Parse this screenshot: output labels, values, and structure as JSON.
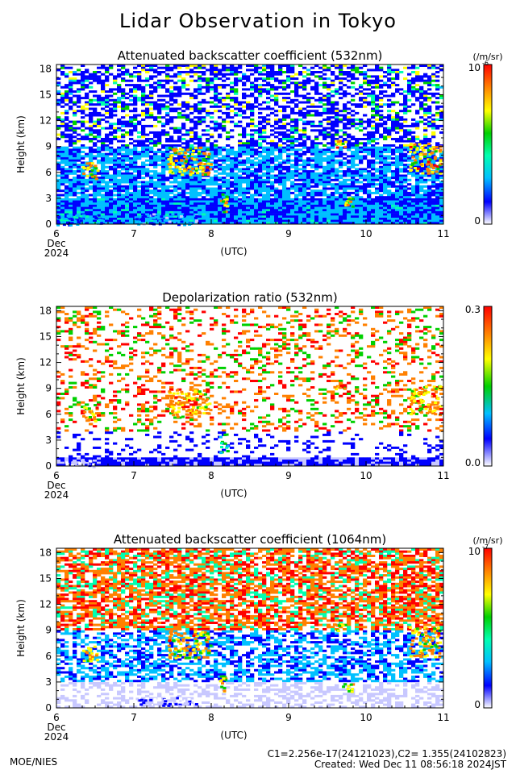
{
  "title": "Lidar Observation in Tokyo",
  "footer": {
    "org": "MOE/NIES",
    "calibration": "C1=2.256e-17(24121023),C2= 1.355(24102823)",
    "created": "Created: Wed Dec 11 08:56:18 2024JST"
  },
  "colors": {
    "colormap": [
      "#ffffff",
      "#c8c8ff",
      "#0000ff",
      "#00c0ff",
      "#00ffb0",
      "#00d000",
      "#ffff00",
      "#ff8000",
      "#ff0000"
    ]
  },
  "chart_data": [
    {
      "type": "heatmap",
      "title": "Attenuated backscatter coefficient (532nm)",
      "ylabel": "Height (km)",
      "xlabel": "(UTC)",
      "x_ticks": [
        "6",
        "7",
        "8",
        "9",
        "10",
        "11"
      ],
      "x_sub": [
        "Dec",
        "2024"
      ],
      "y_ticks": [
        "0",
        "3",
        "6",
        "9",
        "12",
        "15",
        "18"
      ],
      "xlim": [
        6,
        11
      ],
      "ylim": [
        0,
        18.5
      ],
      "colorbar": {
        "unit": "(/m/sr)",
        "max_label": "10",
        "min_label": "0",
        "max_exp": "-6"
      },
      "features": [
        {
          "t": [
            6.33,
            6.52
          ],
          "h": [
            5.3,
            7.3
          ],
          "level": 0.95
        },
        {
          "t": [
            7.43,
            7.98
          ],
          "h": [
            5.8,
            9.0
          ],
          "level": 0.95
        },
        {
          "t": [
            8.1,
            8.2
          ],
          "h": [
            1.5,
            3.8
          ],
          "level": 0.9
        },
        {
          "t": [
            9.57,
            9.72
          ],
          "h": [
            9.0,
            9.9
          ],
          "level": 0.95
        },
        {
          "t": [
            9.68,
            9.82
          ],
          "h": [
            2.0,
            3.4
          ],
          "level": 0.9
        },
        {
          "t": [
            10.55,
            10.95
          ],
          "h": [
            6.0,
            9.5
          ],
          "level": 0.95
        },
        {
          "t": [
            6.0,
            6.6
          ],
          "h": [
            0,
            1.2
          ],
          "level": 0.5
        },
        {
          "t": [
            7.0,
            7.8
          ],
          "h": [
            0,
            1.3
          ],
          "level": 0.45
        }
      ]
    },
    {
      "type": "heatmap",
      "title": "Depolarization ratio (532nm)",
      "ylabel": "Height (km)",
      "xlabel": "(UTC)",
      "x_ticks": [
        "6",
        "7",
        "8",
        "9",
        "10",
        "11"
      ],
      "x_sub": [
        "Dec",
        "2024"
      ],
      "y_ticks": [
        "0",
        "3",
        "6",
        "9",
        "12",
        "15",
        "18"
      ],
      "xlim": [
        6,
        11
      ],
      "ylim": [
        0,
        18.5
      ],
      "colorbar": {
        "max_label": "0.3",
        "min_label": "0.0"
      },
      "features": [
        {
          "t": [
            6.33,
            6.52
          ],
          "h": [
            5.3,
            7.3
          ],
          "level": 0.95
        },
        {
          "t": [
            7.43,
            7.98
          ],
          "h": [
            5.8,
            9.0
          ],
          "level": 0.95
        },
        {
          "t": [
            8.1,
            8.2
          ],
          "h": [
            1.5,
            3.8
          ],
          "level": 0.7
        },
        {
          "t": [
            9.57,
            9.72
          ],
          "h": [
            9.0,
            9.9
          ],
          "level": 0.95
        },
        {
          "t": [
            10.55,
            10.95
          ],
          "h": [
            6.0,
            9.5
          ],
          "level": 0.95
        },
        {
          "t": [
            6.1,
            6.5
          ],
          "h": [
            0,
            1.0
          ],
          "level": 0.2
        }
      ]
    },
    {
      "type": "heatmap",
      "title": "Attenuated backscatter coefficient (1064nm)",
      "ylabel": "Height (km)",
      "xlabel": "(UTC)",
      "x_ticks": [
        "6",
        "7",
        "8",
        "9",
        "10",
        "11"
      ],
      "x_sub": [
        "Dec",
        "2024"
      ],
      "y_ticks": [
        "0",
        "3",
        "6",
        "9",
        "12",
        "15",
        "18"
      ],
      "xlim": [
        6,
        11
      ],
      "ylim": [
        0,
        18.5
      ],
      "colorbar": {
        "unit": "(/m/sr)",
        "max_label": "10",
        "min_label": "0",
        "max_exp": "-7"
      },
      "features": [
        {
          "t": [
            6.33,
            6.52
          ],
          "h": [
            5.3,
            7.3
          ],
          "level": 0.95
        },
        {
          "t": [
            7.43,
            7.98
          ],
          "h": [
            5.8,
            9.0
          ],
          "level": 0.95
        },
        {
          "t": [
            8.1,
            8.2
          ],
          "h": [
            1.5,
            3.8
          ],
          "level": 0.9
        },
        {
          "t": [
            9.57,
            9.72
          ],
          "h": [
            9.0,
            9.9
          ],
          "level": 0.95
        },
        {
          "t": [
            9.68,
            9.82
          ],
          "h": [
            2.0,
            3.0
          ],
          "level": 0.9
        },
        {
          "t": [
            10.55,
            10.95
          ],
          "h": [
            6.0,
            9.5
          ],
          "level": 0.95
        },
        {
          "t": [
            7.0,
            7.8
          ],
          "h": [
            0.3,
            1.3
          ],
          "level": 0.3
        }
      ]
    }
  ]
}
